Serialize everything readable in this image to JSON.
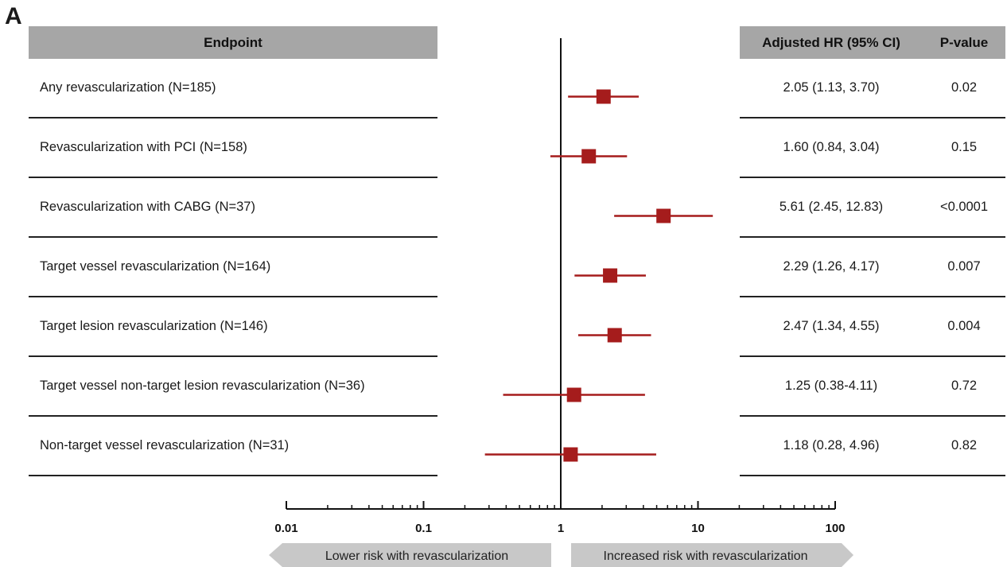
{
  "panel_label": "A",
  "table": {
    "header_endpoint": "Endpoint",
    "header_hr": "Adjusted HR (95% CI)",
    "header_p": "P-value"
  },
  "chart_data": {
    "type": "forest",
    "x_scale": "log",
    "xlim": [
      0.01,
      100
    ],
    "reference_line": 1,
    "ticks": [
      0.01,
      0.1,
      1,
      10,
      100
    ],
    "tick_labels": [
      "0.01",
      "0.1",
      "1",
      "10",
      "100"
    ],
    "marker_color": "#a51c1c",
    "rows": [
      {
        "label": "Any revascularization (N=185)",
        "hr": 2.05,
        "lo": 1.13,
        "hi": 3.7,
        "ci_text": "2.05 (1.13, 3.70)",
        "p": "0.02"
      },
      {
        "label": "Revascularization with PCI (N=158)",
        "hr": 1.6,
        "lo": 0.84,
        "hi": 3.04,
        "ci_text": "1.60 (0.84, 3.04)",
        "p": "0.15"
      },
      {
        "label": "Revascularization with CABG (N=37)",
        "hr": 5.61,
        "lo": 2.45,
        "hi": 12.83,
        "ci_text": "5.61 (2.45, 12.83)",
        "p": "<0.0001"
      },
      {
        "label": "Target vessel revascularization (N=164)",
        "hr": 2.29,
        "lo": 1.26,
        "hi": 4.17,
        "ci_text": "2.29 (1.26, 4.17)",
        "p": "0.007"
      },
      {
        "label": "Target lesion revascularization (N=146)",
        "hr": 2.47,
        "lo": 1.34,
        "hi": 4.55,
        "ci_text": "2.47 (1.34, 4.55)",
        "p": "0.004"
      },
      {
        "label": "Target vessel non-target lesion revascularization (N=36)",
        "hr": 1.25,
        "lo": 0.38,
        "hi": 4.11,
        "ci_text": "1.25 (0.38-4.11)",
        "p": "0.72"
      },
      {
        "label": "Non-target vessel revascularization (N=31)",
        "hr": 1.18,
        "lo": 0.28,
        "hi": 4.96,
        "ci_text": "1.18 (0.28, 4.96)",
        "p": "0.82"
      }
    ],
    "arrow_left": "Lower risk with revascularization",
    "arrow_right": "Increased risk with revascularization"
  }
}
